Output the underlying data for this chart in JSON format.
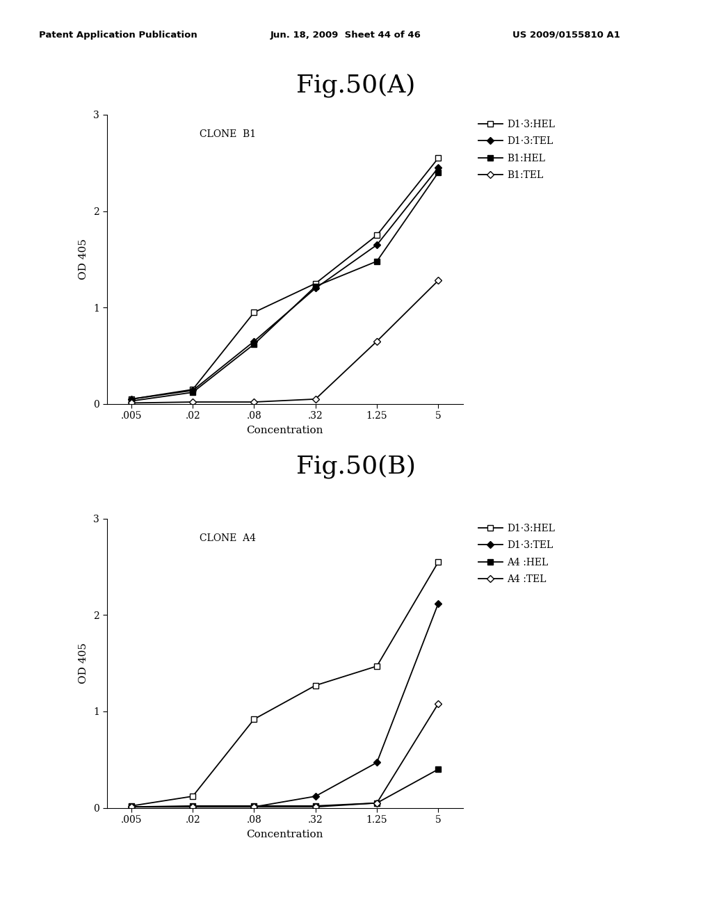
{
  "header_left": "Patent Application Publication",
  "header_center": "Jun. 18, 2009  Sheet 44 of 46",
  "header_right": "US 2009/0155810 A1",
  "fig_A_title": "Fig.50(A)",
  "fig_B_title": "Fig.50(B)",
  "x_labels": [
    ".005",
    ".02",
    ".08",
    ".32",
    "1.25",
    "5"
  ],
  "x_values": [
    0.005,
    0.02,
    0.08,
    0.32,
    1.25,
    5.0
  ],
  "xlabel": "Concentration",
  "ylabel": "OD 405",
  "ylim": [
    0,
    3
  ],
  "yticks": [
    0,
    1,
    2,
    3
  ],
  "clone_A_title": "CLONE  B1",
  "clone_B_title": "CLONE  A4",
  "series_A": {
    "D13_HEL": [
      0.05,
      0.15,
      0.95,
      1.25,
      1.75,
      2.55
    ],
    "D13_TEL": [
      0.05,
      0.14,
      0.65,
      1.2,
      1.65,
      2.45
    ],
    "B1_HEL": [
      0.03,
      0.12,
      0.62,
      1.22,
      1.48,
      2.4
    ],
    "B1_TEL": [
      0.01,
      0.02,
      0.02,
      0.05,
      0.65,
      1.28
    ]
  },
  "series_B": {
    "D13_HEL": [
      0.02,
      0.12,
      0.92,
      1.27,
      1.47,
      2.55
    ],
    "D13_TEL": [
      0.01,
      0.01,
      0.01,
      0.12,
      0.47,
      2.12
    ],
    "A4_HEL": [
      0.01,
      0.02,
      0.02,
      0.02,
      0.05,
      0.4
    ],
    "A4_TEL": [
      0.01,
      0.01,
      0.01,
      0.01,
      0.05,
      1.08
    ]
  },
  "legend_A": [
    "D1·3:HEL",
    "D1·3:TEL",
    "B1:HEL",
    "B1:TEL"
  ],
  "legend_B": [
    "D1·3:HEL",
    "D1·3:TEL",
    "A4 :HEL",
    "A4 :TEL"
  ],
  "bg_color": "#ffffff"
}
